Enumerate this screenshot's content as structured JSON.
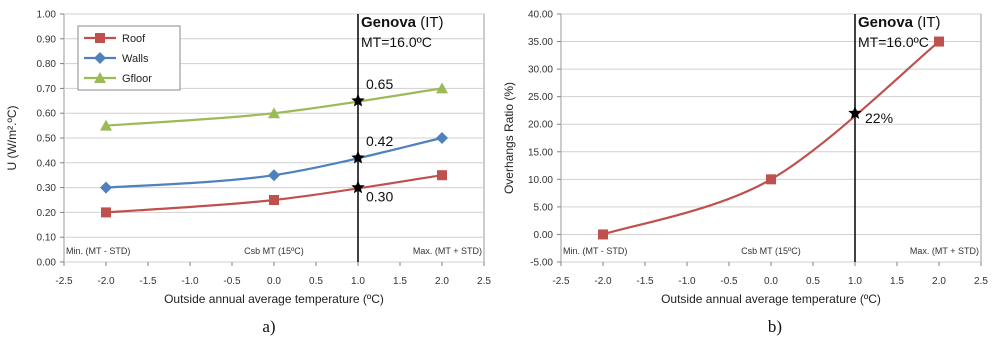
{
  "chart_data": [
    {
      "type": "line",
      "panel_label": "a)",
      "xlabel": "Outside annual average temperature (ºC)",
      "ylabel": "U (W/m².ºC)",
      "xlim": [
        -2.5,
        2.5
      ],
      "ylim": [
        0.0,
        1.0
      ],
      "x_ticks": [
        -2.5,
        -2.0,
        -1.5,
        -1.0,
        -0.5,
        0.0,
        0.5,
        1.0,
        1.5,
        2.0,
        2.5
      ],
      "x_tick_labels": [
        "-2.5",
        "-2.0",
        "-1.5",
        "-1.0",
        "-0.5",
        "0.0",
        "0.5",
        "1.0",
        "1.5",
        "2.0",
        "2.5"
      ],
      "y_ticks": [
        0.0,
        0.1,
        0.2,
        0.3,
        0.4,
        0.5,
        0.6,
        0.7,
        0.8,
        0.9,
        1.0
      ],
      "y_tick_labels": [
        "0.00",
        "0.10",
        "0.20",
        "0.30",
        "0.40",
        "0.50",
        "0.60",
        "0.70",
        "0.80",
        "0.90",
        "1.00"
      ],
      "grid": "horizontal",
      "legend_position": "top-left",
      "series": [
        {
          "name": "Roof",
          "color": "#c0504d",
          "marker": "square",
          "x": [
            -2.0,
            0.0,
            2.0
          ],
          "values": [
            0.2,
            0.25,
            0.35
          ]
        },
        {
          "name": "Walls",
          "color": "#4f81bd",
          "marker": "diamond",
          "x": [
            -2.0,
            0.0,
            2.0
          ],
          "values": [
            0.3,
            0.35,
            0.5
          ]
        },
        {
          "name": "Gfloor",
          "color": "#9bbb59",
          "marker": "triangle",
          "x": [
            -2.0,
            0.0,
            2.0
          ],
          "values": [
            0.55,
            0.6,
            0.7
          ]
        }
      ],
      "reference_line": {
        "x": 1.0,
        "city_name": "Genova",
        "city_suffix": " (IT)",
        "mt_label": "MT=16.0ºC"
      },
      "highlight_points": [
        {
          "x": 1.0,
          "y": 0.65,
          "label": "0.65"
        },
        {
          "x": 1.0,
          "y": 0.42,
          "label": "0.42"
        },
        {
          "x": 1.0,
          "y": 0.3,
          "label": "0.30"
        }
      ],
      "annotations": [
        {
          "text": "Min. (MT - STD)",
          "x": -2.0
        },
        {
          "text": "Csb MT (15ºC)",
          "x": 0.0
        },
        {
          "text": "Max. (MT + STD)",
          "x": 2.0
        }
      ]
    },
    {
      "type": "line",
      "panel_label": "b)",
      "xlabel": "Outside annual average temperature (ºC)",
      "ylabel": "Overhangs Ratio (%)",
      "xlim": [
        -2.5,
        2.5
      ],
      "ylim": [
        -5.0,
        40.0
      ],
      "x_ticks": [
        -2.5,
        -2.0,
        -1.5,
        -1.0,
        -0.5,
        0.0,
        0.5,
        1.0,
        1.5,
        2.0,
        2.5
      ],
      "x_tick_labels": [
        "-2.5",
        "-2.0",
        "-1.5",
        "-1.0",
        "-0.5",
        "0.0",
        "0.5",
        "1.0",
        "1.5",
        "2.0",
        "2.5"
      ],
      "y_ticks": [
        -5,
        0,
        5,
        10,
        15,
        20,
        25,
        30,
        35,
        40
      ],
      "y_tick_labels": [
        "-5.00",
        "0.00",
        "5.00",
        "10.00",
        "15.00",
        "20.00",
        "25.00",
        "30.00",
        "35.00",
        "40.00"
      ],
      "grid": "horizontal",
      "series": [
        {
          "name": "",
          "color": "#c0504d",
          "marker": "square",
          "x": [
            -2.0,
            0.0,
            2.0
          ],
          "values": [
            0.0,
            10.0,
            35.0
          ]
        }
      ],
      "reference_line": {
        "x": 1.0,
        "city_name": "Genova",
        "city_suffix": " (IT)",
        "mt_label": "MT=16.0ºC"
      },
      "highlight_points": [
        {
          "x": 1.0,
          "y": 22.0,
          "label": "22%"
        }
      ],
      "annotations": [
        {
          "text": "Min. (MT - STD)",
          "x": -2.0
        },
        {
          "text": "Csb MT (15ºC)",
          "x": 0.0
        },
        {
          "text": "Max. (MT + STD)",
          "x": 2.0
        }
      ]
    }
  ]
}
